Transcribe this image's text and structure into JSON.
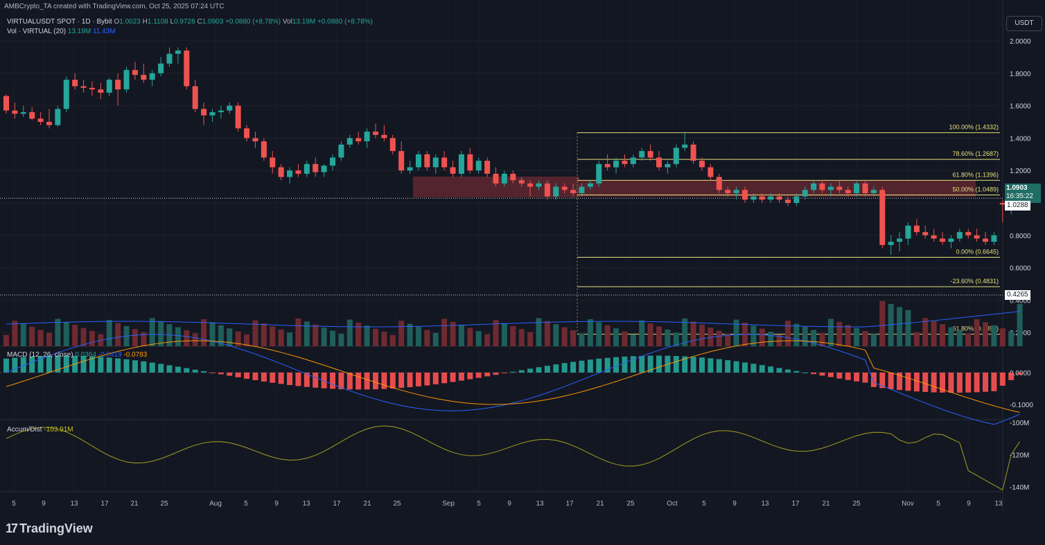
{
  "header": {
    "attribution": "AMBCrypto_TA created with TradingView.com, Oct 25, 2025 07:24 UTC",
    "symbol": "VIRTUALUSDT SPOT · 1D · Bybit",
    "o_label": "O",
    "o_value": "1.0023",
    "h_label": "H",
    "h_value": "1.1108",
    "l_label": "L",
    "l_value": "0.9728",
    "c_label": "C",
    "c_value": "1.0903",
    "change": "+0.0880 (+8.78%)",
    "vol_label": "Vol",
    "vol_value": "13.19M",
    "vol_change": "+0.0880 (+8.78%)",
    "vol_study": "Vol · VIRTUAL (20)",
    "vol_v1": "13.19M",
    "vol_v2": "11.43M",
    "currency": "USDT"
  },
  "price_tags": {
    "last_price": "1.0903",
    "countdown": "16:35:22",
    "level1": "1.0288",
    "level2": "0.4265"
  },
  "macd_header": {
    "label": "MACD (12, 26, close)",
    "hist": "0.0364",
    "macd": "-0.0419",
    "signal": "-0.0783"
  },
  "ad_header": {
    "label": "Accum/Dist",
    "value": "-103.91M"
  },
  "branding": {
    "logo_text": "TradingView"
  },
  "colors": {
    "up": "#26a69a",
    "down": "#ef5350",
    "fib": "#e6e07a",
    "macd_line": "#2962ff",
    "signal_line": "#ff9800",
    "ad_line": "#a5a01f",
    "zone": "#6b2a33"
  },
  "chart_data": {
    "type": "candlestick",
    "price_axis": {
      "ticks": [
        2.0,
        1.8,
        1.6,
        1.4,
        1.2,
        1.0,
        0.8,
        0.6,
        0.4,
        0.2
      ],
      "labels": [
        "2.0000",
        "1.8000",
        "1.6000",
        "1.4000",
        "1.2000",
        "1.0000",
        "0.8000",
        "0.6000",
        "0.4000",
        "0.2000"
      ]
    },
    "time_axis": [
      "5",
      "9",
      "13",
      "17",
      "21",
      "25",
      "Aug",
      "5",
      "9",
      "13",
      "17",
      "21",
      "25",
      "Sep",
      "5",
      "9",
      "13",
      "17",
      "21",
      "25",
      "Oct",
      "5",
      "9",
      "13",
      "17",
      "21",
      "25",
      "Nov",
      "5",
      "9",
      "13"
    ],
    "fib_levels": [
      {
        "label": "100.00% (1.4332)",
        "value": 1.4332
      },
      {
        "label": "78.60% (1.2687)",
        "value": 1.2687
      },
      {
        "label": "61.80% (1.1396)",
        "value": 1.1396
      },
      {
        "label": "50.00% (1.0489)",
        "value": 1.0489
      },
      {
        "label": "0.00% (0.6645)",
        "value": 0.6645
      },
      {
        "label": "-23.60% (0.4831)",
        "value": 0.4831
      },
      {
        "label": "-61.80% (0.1894)",
        "value": 0.1894
      }
    ],
    "candles": [
      [
        1.66,
        1.67,
        1.55,
        1.57
      ],
      [
        1.57,
        1.62,
        1.52,
        1.55
      ],
      [
        1.55,
        1.6,
        1.53,
        1.56
      ],
      [
        1.56,
        1.59,
        1.51,
        1.52
      ],
      [
        1.52,
        1.56,
        1.48,
        1.5
      ],
      [
        1.5,
        1.58,
        1.46,
        1.48
      ],
      [
        1.48,
        1.6,
        1.47,
        1.58
      ],
      [
        1.58,
        1.78,
        1.56,
        1.76
      ],
      [
        1.76,
        1.8,
        1.7,
        1.72
      ],
      [
        1.72,
        1.76,
        1.68,
        1.71
      ],
      [
        1.71,
        1.75,
        1.66,
        1.7
      ],
      [
        1.7,
        1.74,
        1.64,
        1.68
      ],
      [
        1.68,
        1.77,
        1.66,
        1.76
      ],
      [
        1.76,
        1.8,
        1.6,
        1.7
      ],
      [
        1.7,
        1.84,
        1.68,
        1.82
      ],
      [
        1.82,
        1.87,
        1.76,
        1.79
      ],
      [
        1.79,
        1.86,
        1.74,
        1.76
      ],
      [
        1.76,
        1.82,
        1.72,
        1.8
      ],
      [
        1.8,
        1.9,
        1.78,
        1.86
      ],
      [
        1.86,
        1.96,
        1.84,
        1.92
      ],
      [
        1.92,
        1.96,
        1.86,
        1.94
      ],
      [
        1.94,
        1.96,
        1.7,
        1.72
      ],
      [
        1.72,
        1.76,
        1.56,
        1.58
      ],
      [
        1.58,
        1.62,
        1.48,
        1.54
      ],
      [
        1.54,
        1.58,
        1.5,
        1.56
      ],
      [
        1.56,
        1.6,
        1.52,
        1.57
      ],
      [
        1.57,
        1.62,
        1.55,
        1.6
      ],
      [
        1.6,
        1.62,
        1.44,
        1.46
      ],
      [
        1.46,
        1.48,
        1.38,
        1.4
      ],
      [
        1.4,
        1.44,
        1.34,
        1.38
      ],
      [
        1.38,
        1.4,
        1.26,
        1.28
      ],
      [
        1.28,
        1.32,
        1.18,
        1.22
      ],
      [
        1.22,
        1.24,
        1.14,
        1.16
      ],
      [
        1.16,
        1.22,
        1.12,
        1.2
      ],
      [
        1.2,
        1.24,
        1.16,
        1.18
      ],
      [
        1.18,
        1.26,
        1.16,
        1.24
      ],
      [
        1.24,
        1.28,
        1.16,
        1.19
      ],
      [
        1.19,
        1.24,
        1.16,
        1.23
      ],
      [
        1.23,
        1.3,
        1.2,
        1.28
      ],
      [
        1.28,
        1.38,
        1.26,
        1.36
      ],
      [
        1.36,
        1.42,
        1.34,
        1.4
      ],
      [
        1.4,
        1.44,
        1.36,
        1.38
      ],
      [
        1.38,
        1.46,
        1.34,
        1.44
      ],
      [
        1.44,
        1.49,
        1.4,
        1.42
      ],
      [
        1.42,
        1.48,
        1.38,
        1.4
      ],
      [
        1.4,
        1.42,
        1.3,
        1.32
      ],
      [
        1.32,
        1.38,
        1.18,
        1.2
      ],
      [
        1.2,
        1.26,
        1.18,
        1.22
      ],
      [
        1.22,
        1.32,
        1.2,
        1.3
      ],
      [
        1.3,
        1.32,
        1.2,
        1.22
      ],
      [
        1.22,
        1.3,
        1.18,
        1.28
      ],
      [
        1.28,
        1.32,
        1.2,
        1.22
      ],
      [
        1.22,
        1.26,
        1.16,
        1.18
      ],
      [
        1.18,
        1.32,
        1.16,
        1.3
      ],
      [
        1.3,
        1.34,
        1.18,
        1.2
      ],
      [
        1.2,
        1.28,
        1.18,
        1.26
      ],
      [
        1.26,
        1.28,
        1.16,
        1.18
      ],
      [
        1.18,
        1.22,
        1.1,
        1.12
      ],
      [
        1.12,
        1.2,
        1.1,
        1.18
      ],
      [
        1.18,
        1.2,
        1.12,
        1.14
      ],
      [
        1.14,
        1.16,
        1.1,
        1.12
      ],
      [
        1.12,
        1.14,
        1.04,
        1.1
      ],
      [
        1.1,
        1.14,
        1.08,
        1.12
      ],
      [
        1.12,
        1.14,
        1.02,
        1.04
      ],
      [
        1.04,
        1.12,
        1.02,
        1.1
      ],
      [
        1.1,
        1.12,
        1.06,
        1.08
      ],
      [
        1.08,
        1.12,
        1.04,
        1.06
      ],
      [
        1.06,
        1.12,
        1.04,
        1.1
      ],
      [
        1.1,
        1.14,
        1.08,
        1.12
      ],
      [
        1.12,
        1.26,
        1.1,
        1.24
      ],
      [
        1.24,
        1.3,
        1.2,
        1.22
      ],
      [
        1.22,
        1.28,
        1.18,
        1.26
      ],
      [
        1.26,
        1.3,
        1.22,
        1.24
      ],
      [
        1.24,
        1.3,
        1.22,
        1.28
      ],
      [
        1.28,
        1.34,
        1.26,
        1.32
      ],
      [
        1.32,
        1.36,
        1.26,
        1.28
      ],
      [
        1.28,
        1.32,
        1.2,
        1.22
      ],
      [
        1.22,
        1.26,
        1.18,
        1.24
      ],
      [
        1.24,
        1.36,
        1.22,
        1.34
      ],
      [
        1.34,
        1.44,
        1.32,
        1.36
      ],
      [
        1.36,
        1.38,
        1.24,
        1.26
      ],
      [
        1.26,
        1.28,
        1.2,
        1.22
      ],
      [
        1.22,
        1.24,
        1.14,
        1.16
      ],
      [
        1.16,
        1.18,
        1.06,
        1.08
      ],
      [
        1.08,
        1.1,
        1.04,
        1.06
      ],
      [
        1.06,
        1.1,
        1.02,
        1.08
      ],
      [
        1.08,
        1.1,
        1.0,
        1.02
      ],
      [
        1.02,
        1.06,
        1.0,
        1.04
      ],
      [
        1.04,
        1.06,
        1.0,
        1.02
      ],
      [
        1.02,
        1.06,
        1.0,
        1.04
      ],
      [
        1.04,
        1.06,
        1.0,
        1.02
      ],
      [
        1.02,
        1.04,
        0.98,
        1.0
      ],
      [
        1.0,
        1.06,
        0.98,
        1.04
      ],
      [
        1.04,
        1.1,
        1.02,
        1.08
      ],
      [
        1.08,
        1.14,
        1.06,
        1.12
      ],
      [
        1.12,
        1.14,
        1.06,
        1.08
      ],
      [
        1.08,
        1.12,
        1.04,
        1.1
      ],
      [
        1.1,
        1.14,
        1.06,
        1.08
      ],
      [
        1.08,
        1.1,
        1.04,
        1.06
      ],
      [
        1.06,
        1.14,
        1.04,
        1.12
      ],
      [
        1.12,
        1.14,
        1.04,
        1.06
      ],
      [
        1.06,
        1.1,
        1.04,
        1.08
      ],
      [
        1.08,
        1.1,
        0.72,
        0.74
      ],
      [
        0.74,
        0.8,
        0.68,
        0.76
      ],
      [
        0.76,
        0.82,
        0.7,
        0.78
      ],
      [
        0.78,
        0.88,
        0.74,
        0.86
      ],
      [
        0.86,
        0.9,
        0.8,
        0.82
      ],
      [
        0.82,
        0.86,
        0.78,
        0.8
      ],
      [
        0.8,
        0.84,
        0.76,
        0.78
      ],
      [
        0.78,
        0.82,
        0.74,
        0.76
      ],
      [
        0.76,
        0.8,
        0.72,
        0.78
      ],
      [
        0.78,
        0.84,
        0.76,
        0.82
      ],
      [
        0.82,
        0.84,
        0.78,
        0.8
      ],
      [
        0.8,
        0.84,
        0.76,
        0.78
      ],
      [
        0.78,
        0.82,
        0.74,
        0.76
      ],
      [
        0.76,
        0.82,
        0.74,
        0.8
      ],
      [
        1.0,
        1.02,
        0.88,
        0.99
      ],
      [
        0.98,
        1.02,
        0.93,
        1.0
      ],
      [
        1.0,
        1.11,
        0.97,
        1.09
      ]
    ],
    "volume_ma20": [
      13.19,
      11.43
    ],
    "macd_axis": [
      "0.0000",
      "-0.1000"
    ],
    "ad_axis": [
      "-100M",
      "-120M",
      "-140M"
    ]
  }
}
